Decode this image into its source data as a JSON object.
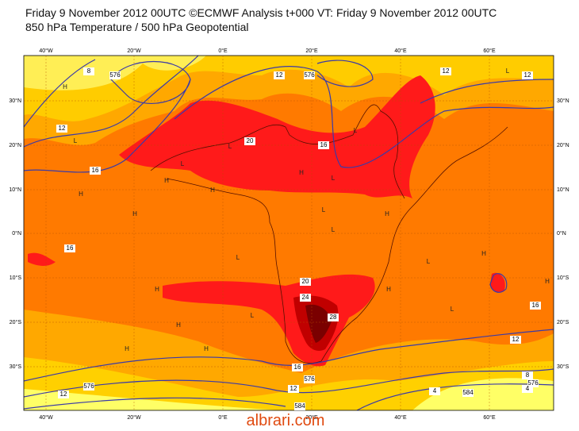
{
  "header": {
    "lines": [
      "Friday 9 November 2012 00UTC ©ECMWF Analysis t+000 VT: Friday 9 November 2012 00UTC",
      "850 hPa Temperature / 500 hPa Geopotential"
    ]
  },
  "map": {
    "lon_labels": [
      "40°W",
      "20°W",
      "0°E",
      "20°E",
      "40°E",
      "60°E"
    ],
    "lat_labels": [
      "30°N",
      "20°N",
      "10°N",
      "0°N",
      "10°S",
      "20°S",
      "30°S"
    ],
    "contour_labels": [
      "8",
      "576",
      "12",
      "16",
      "20",
      "12",
      "576",
      "12",
      "12",
      "16",
      "16",
      "20",
      "24",
      "28",
      "16",
      "12",
      "16",
      "576",
      "12",
      "584",
      "12",
      "576",
      "8",
      "576",
      "4",
      "4",
      "584"
    ],
    "pressure_marks": [
      "H",
      "L",
      "L",
      "H",
      "H",
      "H",
      "H",
      "L",
      "L",
      "L",
      "H",
      "L",
      "L",
      "H",
      "L",
      "H",
      "H",
      "H",
      "L",
      "H",
      "H",
      "L",
      "H",
      "L",
      "L",
      "H"
    ]
  },
  "watermark": "albrari.com"
}
